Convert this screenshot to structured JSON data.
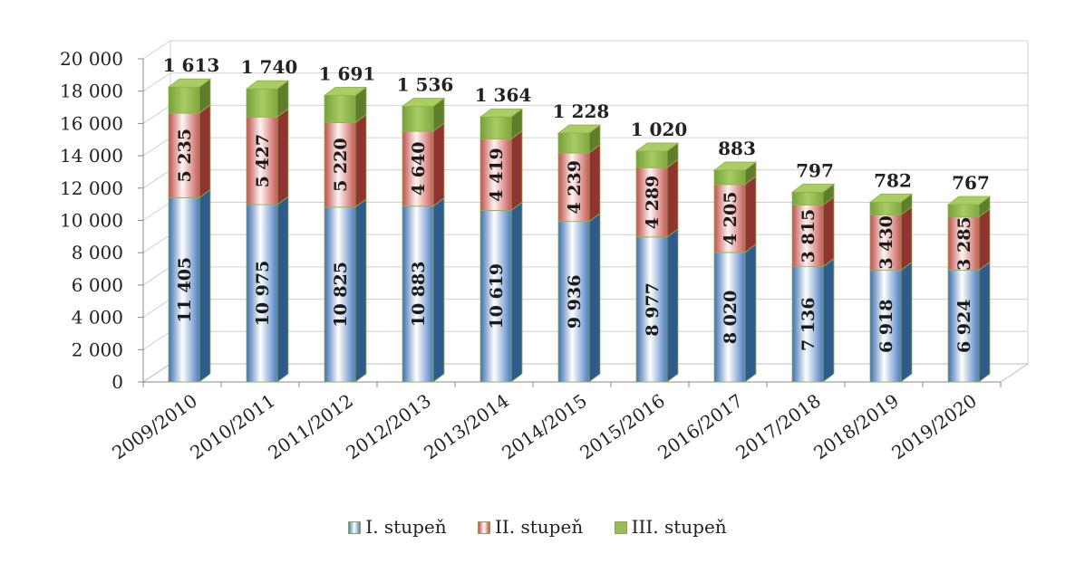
{
  "chart_data": {
    "type": "bar",
    "stacked": true,
    "three_d": true,
    "categories": [
      "2009/2010",
      "2010/2011",
      "2011/2012",
      "2012/2013",
      "2013/2014",
      "2014/2015",
      "2015/2016",
      "2016/2017",
      "2017/2018",
      "2018/2019",
      "2019/2020"
    ],
    "series": [
      {
        "name": "I. stupeň",
        "values": [
          11405,
          10975,
          10825,
          10883,
          10619,
          9936,
          8977,
          8020,
          7136,
          6918,
          6924
        ],
        "labels": [
          "11 405",
          "10 975",
          "10 825",
          "10 883",
          "10 619",
          "9 936",
          "8 977",
          "8 020",
          "7 136",
          "6 918",
          "6 924"
        ],
        "color": "#4f81bd"
      },
      {
        "name": "II. stupeň",
        "values": [
          5235,
          5427,
          5220,
          4640,
          4419,
          4239,
          4289,
          4205,
          3815,
          3430,
          3285
        ],
        "labels": [
          "5 235",
          "5 427",
          "5 220",
          "4 640",
          "4 419",
          "4 239",
          "4 289",
          "4 205",
          "3 815",
          "3 430",
          "3 285"
        ],
        "color": "#c0504d"
      },
      {
        "name": "III. stupeň",
        "values": [
          1613,
          1740,
          1691,
          1536,
          1364,
          1228,
          1020,
          883,
          797,
          782,
          767
        ],
        "labels": [
          "1 613",
          "1 740",
          "1 691",
          "1 536",
          "1 364",
          "1 228",
          "1 020",
          "883",
          "797",
          "782",
          "767"
        ],
        "color": "#9bbb59"
      }
    ],
    "ylim": [
      0,
      20000
    ],
    "yticks": [
      "0",
      "2 000",
      "4 000",
      "6 000",
      "8 000",
      "10 000",
      "12 000",
      "14 000",
      "16 000",
      "18 000",
      "20 000"
    ],
    "grid": true,
    "legend": "bottom"
  }
}
